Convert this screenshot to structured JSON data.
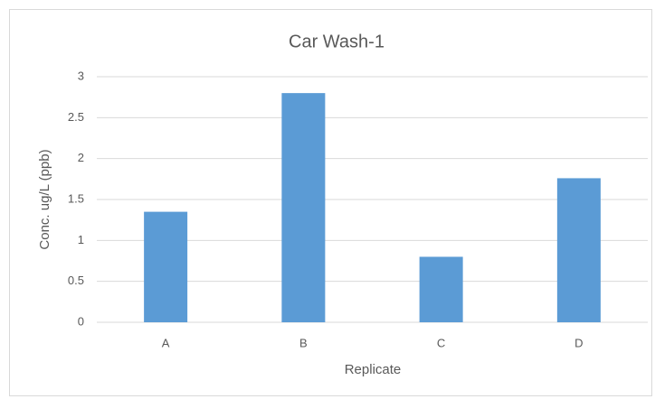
{
  "chart_data": {
    "type": "bar",
    "title": "Car Wash-1",
    "x_label": "Replicate",
    "y_label": "Conc. ug/L (ppb)",
    "categories": [
      "A",
      "B",
      "C",
      "D"
    ],
    "values": [
      1.35,
      2.8,
      0.8,
      1.76
    ],
    "color": "#5b9bd5",
    "ylim": [
      0,
      3
    ],
    "yticks": [
      0,
      0.5,
      1,
      1.5,
      2,
      2.5,
      3
    ],
    "grid": true
  }
}
